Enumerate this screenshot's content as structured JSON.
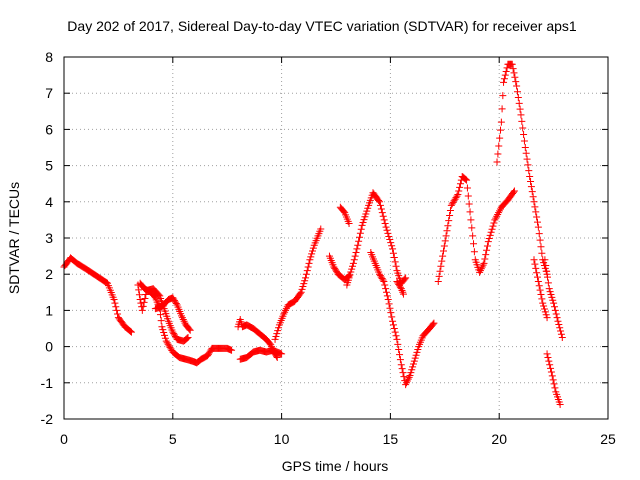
{
  "chart_data": {
    "type": "scatter",
    "title": "Day 202 of 2017, Sidereal Day-to-day VTEC variation (SDTVAR) for receiver aps1",
    "xlabel": "GPS time / hours",
    "ylabel": "SDTVAR / TECUs",
    "xlim": [
      0,
      25
    ],
    "ylim": [
      -2,
      8
    ],
    "xticks": [
      0,
      5,
      10,
      15,
      20,
      25
    ],
    "yticks": [
      -2,
      -1,
      0,
      1,
      2,
      3,
      4,
      5,
      6,
      7,
      8
    ],
    "grid": true,
    "marker": "plus",
    "color": "#ff0000",
    "series": [
      {
        "segments": [
          [
            [
              0.0,
              2.2
            ],
            [
              0.3,
              2.45
            ],
            [
              0.6,
              2.3
            ],
            [
              1.0,
              2.15
            ],
            [
              1.5,
              1.95
            ],
            [
              2.0,
              1.75
            ],
            [
              2.3,
              1.3
            ],
            [
              2.5,
              0.8
            ],
            [
              2.8,
              0.55
            ],
            [
              3.1,
              0.4
            ]
          ],
          [
            [
              3.4,
              1.7
            ],
            [
              3.5,
              1.3
            ],
            [
              3.6,
              1.0
            ],
            [
              3.8,
              1.55
            ],
            [
              4.1,
              1.6
            ],
            [
              4.4,
              1.4
            ],
            [
              4.6,
              1.05
            ],
            [
              4.8,
              0.7
            ],
            [
              5.0,
              0.4
            ],
            [
              5.2,
              0.2
            ],
            [
              5.5,
              0.15
            ],
            [
              5.7,
              0.25
            ]
          ],
          [
            [
              3.5,
              1.75
            ],
            [
              3.7,
              1.6
            ],
            [
              4.0,
              1.5
            ],
            [
              4.2,
              1.35
            ],
            [
              4.4,
              1.05
            ],
            [
              4.5,
              0.55
            ],
            [
              4.7,
              0.15
            ],
            [
              5.0,
              -0.15
            ],
            [
              5.3,
              -0.3
            ],
            [
              5.6,
              -0.35
            ],
            [
              5.9,
              -0.4
            ],
            [
              6.1,
              -0.45
            ],
            [
              6.3,
              -0.35
            ],
            [
              6.6,
              -0.25
            ],
            [
              6.8,
              -0.05
            ],
            [
              7.1,
              -0.05
            ],
            [
              7.5,
              -0.05
            ],
            [
              7.7,
              -0.1
            ]
          ],
          [
            [
              4.2,
              1.05
            ],
            [
              4.5,
              1.1
            ],
            [
              4.8,
              1.3
            ],
            [
              5.0,
              1.35
            ],
            [
              5.2,
              1.15
            ],
            [
              5.4,
              0.85
            ],
            [
              5.6,
              0.6
            ],
            [
              5.8,
              0.45
            ]
          ],
          [
            [
              8.0,
              0.55
            ],
            [
              8.1,
              0.75
            ],
            [
              8.2,
              0.55
            ],
            [
              8.4,
              0.6
            ],
            [
              8.7,
              0.5
            ],
            [
              9.0,
              0.35
            ],
            [
              9.3,
              0.2
            ],
            [
              9.5,
              0.05
            ],
            [
              9.6,
              -0.1
            ],
            [
              9.7,
              -0.2
            ],
            [
              9.8,
              -0.3
            ]
          ],
          [
            [
              8.1,
              -0.35
            ],
            [
              8.4,
              -0.3
            ],
            [
              8.7,
              -0.15
            ],
            [
              9.0,
              -0.1
            ],
            [
              9.3,
              -0.15
            ],
            [
              9.6,
              -0.1
            ],
            [
              10.0,
              -0.2
            ]
          ],
          [
            [
              9.7,
              0.2
            ],
            [
              9.9,
              0.6
            ],
            [
              10.1,
              0.9
            ],
            [
              10.3,
              1.15
            ],
            [
              10.6,
              1.25
            ],
            [
              10.9,
              1.5
            ],
            [
              11.1,
              1.9
            ],
            [
              11.3,
              2.4
            ],
            [
              11.5,
              2.8
            ],
            [
              11.8,
              3.25
            ]
          ],
          [
            [
              12.2,
              2.5
            ],
            [
              12.4,
              2.2
            ],
            [
              12.6,
              2.0
            ],
            [
              12.9,
              1.85
            ],
            [
              13.1,
              1.95
            ]
          ],
          [
            [
              12.7,
              3.85
            ],
            [
              12.9,
              3.7
            ],
            [
              13.1,
              3.4
            ]
          ],
          [
            [
              13.0,
              1.7
            ],
            [
              13.1,
              1.9
            ],
            [
              13.3,
              2.3
            ],
            [
              13.5,
              2.8
            ],
            [
              13.7,
              3.35
            ],
            [
              14.0,
              3.9
            ],
            [
              14.2,
              4.25
            ],
            [
              14.5,
              4.0
            ],
            [
              14.8,
              3.3
            ],
            [
              15.1,
              2.7
            ],
            [
              15.3,
              2.1
            ],
            [
              15.5,
              1.75
            ],
            [
              15.7,
              1.9
            ]
          ],
          [
            [
              14.1,
              2.6
            ],
            [
              14.3,
              2.3
            ],
            [
              14.5,
              2.0
            ],
            [
              14.7,
              1.8
            ],
            [
              14.9,
              1.3
            ],
            [
              15.1,
              0.7
            ],
            [
              15.3,
              0.2
            ],
            [
              15.5,
              -0.5
            ],
            [
              15.7,
              -1.05
            ],
            [
              15.9,
              -0.8
            ],
            [
              16.1,
              -0.4
            ],
            [
              16.3,
              0.0
            ],
            [
              16.5,
              0.3
            ],
            [
              16.8,
              0.5
            ],
            [
              17.0,
              0.65
            ]
          ],
          [
            [
              15.3,
              1.8
            ],
            [
              15.5,
              1.6
            ],
            [
              15.6,
              1.45
            ]
          ],
          [
            [
              17.2,
              1.8
            ],
            [
              17.4,
              2.5
            ],
            [
              17.6,
              3.2
            ],
            [
              17.8,
              3.9
            ],
            [
              18.1,
              4.2
            ],
            [
              18.3,
              4.7
            ],
            [
              18.5,
              4.6
            ],
            [
              18.7,
              3.5
            ],
            [
              18.9,
              2.4
            ],
            [
              19.1,
              2.05
            ],
            [
              19.3,
              2.3
            ],
            [
              19.5,
              2.9
            ],
            [
              19.8,
              3.5
            ],
            [
              20.1,
              3.85
            ],
            [
              20.4,
              4.05
            ],
            [
              20.7,
              4.3
            ]
          ],
          [
            [
              19.9,
              5.1
            ],
            [
              20.1,
              6.2
            ],
            [
              20.2,
              7.3
            ],
            [
              20.4,
              7.8
            ],
            [
              20.6,
              7.8
            ],
            [
              20.8,
              7.2
            ],
            [
              21.0,
              6.4
            ],
            [
              21.2,
              5.5
            ],
            [
              21.4,
              4.7
            ],
            [
              21.6,
              4.0
            ],
            [
              21.8,
              3.3
            ],
            [
              22.0,
              2.4
            ],
            [
              22.2,
              2.0
            ]
          ],
          [
            [
              21.6,
              2.4
            ],
            [
              21.8,
              1.8
            ],
            [
              22.0,
              1.2
            ],
            [
              22.2,
              0.8
            ]
          ],
          [
            [
              22.1,
              2.4
            ],
            [
              22.3,
              1.6
            ],
            [
              22.5,
              1.2
            ],
            [
              22.7,
              0.7
            ],
            [
              22.9,
              0.25
            ]
          ],
          [
            [
              22.2,
              -0.2
            ],
            [
              22.4,
              -0.7
            ],
            [
              22.6,
              -1.25
            ],
            [
              22.8,
              -1.6
            ]
          ]
        ]
      }
    ]
  }
}
